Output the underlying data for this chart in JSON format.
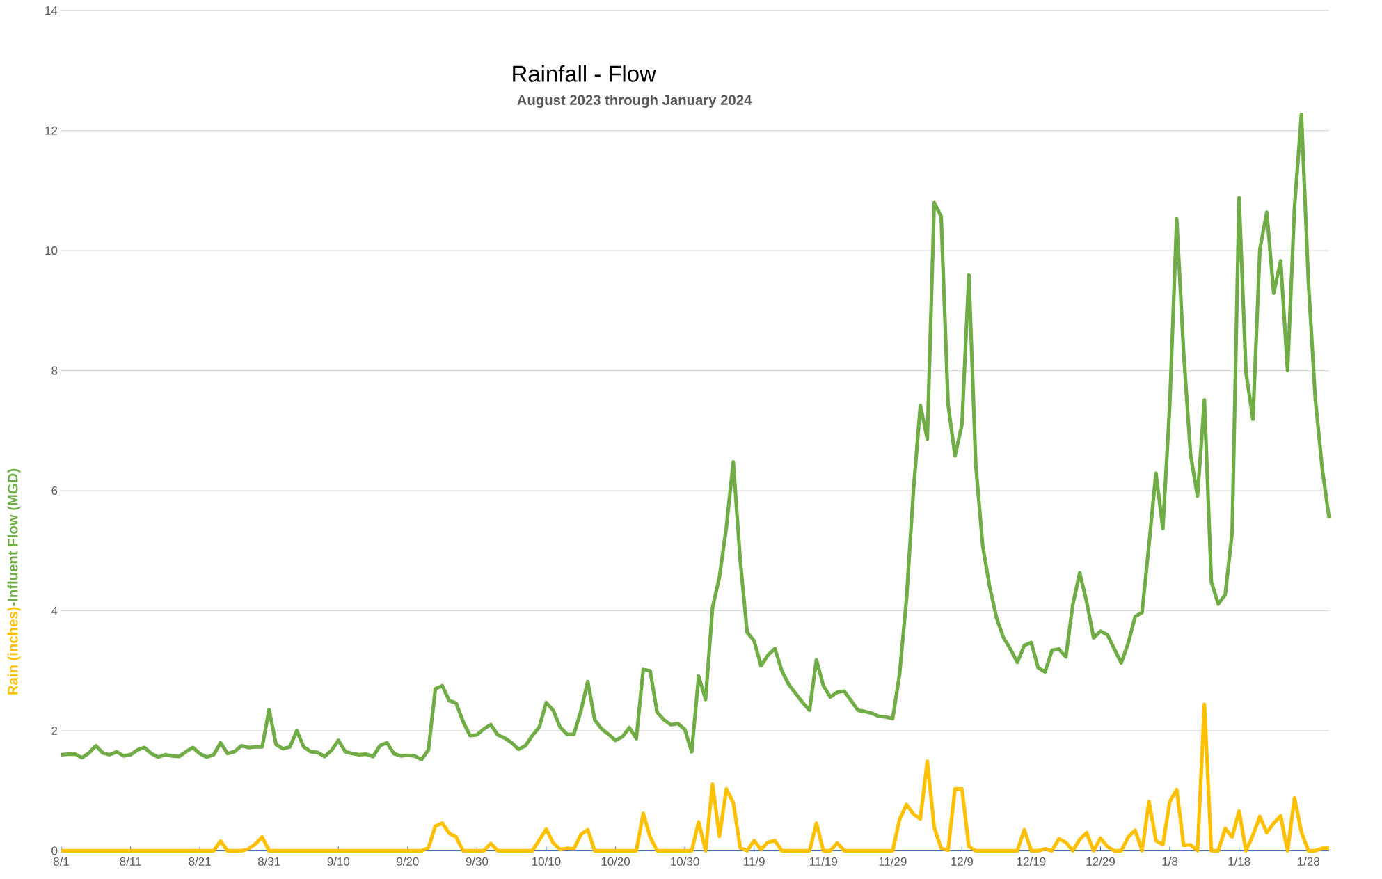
{
  "chart_data": {
    "type": "line",
    "title": "Rainfall - Flow",
    "subtitle": "August 2023 through January 2024",
    "x": [
      "2023-08-01",
      "2023-08-02",
      "2023-08-03",
      "2023-08-04",
      "2023-08-05",
      "2023-08-06",
      "2023-08-07",
      "2023-08-08",
      "2023-08-09",
      "2023-08-10",
      "2023-08-11",
      "2023-08-12",
      "2023-08-13",
      "2023-08-14",
      "2023-08-15",
      "2023-08-16",
      "2023-08-17",
      "2023-08-18",
      "2023-08-19",
      "2023-08-20",
      "2023-08-21",
      "2023-08-22",
      "2023-08-23",
      "2023-08-24",
      "2023-08-25",
      "2023-08-26",
      "2023-08-27",
      "2023-08-28",
      "2023-08-29",
      "2023-08-30",
      "2023-08-31",
      "2023-09-01",
      "2023-09-02",
      "2023-09-03",
      "2023-09-04",
      "2023-09-05",
      "2023-09-06",
      "2023-09-07",
      "2023-09-08",
      "2023-09-09",
      "2023-09-10",
      "2023-09-11",
      "2023-09-12",
      "2023-09-13",
      "2023-09-14",
      "2023-09-15",
      "2023-09-16",
      "2023-09-17",
      "2023-09-18",
      "2023-09-19",
      "2023-09-20",
      "2023-09-21",
      "2023-09-22",
      "2023-09-23",
      "2023-09-24",
      "2023-09-25",
      "2023-09-26",
      "2023-09-27",
      "2023-09-28",
      "2023-09-29",
      "2023-09-30",
      "2023-10-01",
      "2023-10-02",
      "2023-10-03",
      "2023-10-04",
      "2023-10-05",
      "2023-10-06",
      "2023-10-07",
      "2023-10-08",
      "2023-10-09",
      "2023-10-10",
      "2023-10-11",
      "2023-10-12",
      "2023-10-13",
      "2023-10-14",
      "2023-10-15",
      "2023-10-16",
      "2023-10-17",
      "2023-10-18",
      "2023-10-19",
      "2023-10-20",
      "2023-10-21",
      "2023-10-22",
      "2023-10-23",
      "2023-10-24",
      "2023-10-25",
      "2023-10-26",
      "2023-10-27",
      "2023-10-28",
      "2023-10-29",
      "2023-10-30",
      "2023-10-31",
      "2023-11-01",
      "2023-11-02",
      "2023-11-03",
      "2023-11-04",
      "2023-11-05",
      "2023-11-06",
      "2023-11-07",
      "2023-11-08",
      "2023-11-09",
      "2023-11-10",
      "2023-11-11",
      "2023-11-12",
      "2023-11-13",
      "2023-11-14",
      "2023-11-15",
      "2023-11-16",
      "2023-11-17",
      "2023-11-18",
      "2023-11-19",
      "2023-11-20",
      "2023-11-21",
      "2023-11-22",
      "2023-11-23",
      "2023-11-24",
      "2023-11-25",
      "2023-11-26",
      "2023-11-27",
      "2023-11-28",
      "2023-11-29",
      "2023-11-30",
      "2023-12-01",
      "2023-12-02",
      "2023-12-03",
      "2023-12-04",
      "2023-12-05",
      "2023-12-06",
      "2023-12-07",
      "2023-12-08",
      "2023-12-09",
      "2023-12-10",
      "2023-12-11",
      "2023-12-12",
      "2023-12-13",
      "2023-12-14",
      "2023-12-15",
      "2023-12-16",
      "2023-12-17",
      "2023-12-18",
      "2023-12-19",
      "2023-12-20",
      "2023-12-21",
      "2023-12-22",
      "2023-12-23",
      "2023-12-24",
      "2023-12-25",
      "2023-12-26",
      "2023-12-27",
      "2023-12-28",
      "2023-12-29",
      "2023-12-30",
      "2023-12-31",
      "2024-01-01",
      "2024-01-02",
      "2024-01-03",
      "2024-01-04",
      "2024-01-05",
      "2024-01-06",
      "2024-01-07",
      "2024-01-08",
      "2024-01-09",
      "2024-01-10",
      "2024-01-11",
      "2024-01-12",
      "2024-01-13",
      "2024-01-14",
      "2024-01-15",
      "2024-01-16",
      "2024-01-17",
      "2024-01-18",
      "2024-01-19",
      "2024-01-20",
      "2024-01-21",
      "2024-01-22",
      "2024-01-23",
      "2024-01-24",
      "2024-01-25",
      "2024-01-26",
      "2024-01-27",
      "2024-01-28",
      "2024-01-29",
      "2024-01-30",
      "2024-01-31"
    ],
    "xlim": [
      "2023-08-01",
      "2024-01-31"
    ],
    "xticks": [
      {
        "value": "2023-08-01",
        "label": "8/1"
      },
      {
        "value": "2023-08-11",
        "label": "8/11"
      },
      {
        "value": "2023-08-21",
        "label": "8/21"
      },
      {
        "value": "2023-08-31",
        "label": "8/31"
      },
      {
        "value": "2023-09-10",
        "label": "9/10"
      },
      {
        "value": "2023-09-20",
        "label": "9/20"
      },
      {
        "value": "2023-09-30",
        "label": "9/30"
      },
      {
        "value": "2023-10-10",
        "label": "10/10"
      },
      {
        "value": "2023-10-20",
        "label": "10/20"
      },
      {
        "value": "2023-10-30",
        "label": "10/30"
      },
      {
        "value": "2023-11-09",
        "label": "11/9"
      },
      {
        "value": "2023-11-19",
        "label": "11/19"
      },
      {
        "value": "2023-11-29",
        "label": "11/29"
      },
      {
        "value": "2023-12-09",
        "label": "12/9"
      },
      {
        "value": "2023-12-19",
        "label": "12/19"
      },
      {
        "value": "2023-12-29",
        "label": "12/29"
      },
      {
        "value": "2024-01-08",
        "label": "1/8"
      },
      {
        "value": "2024-01-18",
        "label": "1/18"
      },
      {
        "value": "2024-01-28",
        "label": "1/28"
      }
    ],
    "ylim": [
      0,
      14
    ],
    "yticks": [
      0,
      2,
      4,
      6,
      8,
      10,
      12,
      14
    ],
    "grid": "y",
    "line_style": "solid",
    "series": [
      {
        "name": "Rain (inches)",
        "color": "#ffc000",
        "values": [
          0,
          0,
          0,
          0,
          0,
          0,
          0,
          0,
          0,
          0,
          0,
          0,
          0,
          0,
          0,
          0,
          0,
          0,
          0,
          0,
          0,
          0,
          0,
          0.16,
          0,
          0,
          0,
          0.03,
          0.11,
          0.23,
          0,
          0,
          0,
          0,
          0,
          0,
          0,
          0,
          0,
          0,
          0,
          0,
          0,
          0,
          0,
          0,
          0,
          0,
          0,
          0,
          0,
          0,
          0,
          0.05,
          0.41,
          0.46,
          0.29,
          0.23,
          0,
          0,
          0,
          0,
          0.12,
          0,
          0,
          0,
          0,
          0,
          0,
          0.18,
          0.36,
          0.13,
          0.02,
          0.04,
          0.03,
          0.27,
          0.35,
          0,
          0,
          0,
          0,
          0,
          0,
          0,
          0.62,
          0.23,
          0,
          0,
          0,
          0,
          0,
          0,
          0.48,
          0,
          1.11,
          0.24,
          1.03,
          0.8,
          0.05,
          0,
          0.17,
          0.02,
          0.14,
          0.17,
          0,
          0,
          0,
          0,
          0,
          0.46,
          0,
          0,
          0.13,
          0,
          0,
          0,
          0,
          0,
          0,
          0,
          0,
          0.52,
          0.77,
          0.61,
          0.53,
          1.49,
          0.39,
          0.04,
          0.01,
          1.03,
          1.03,
          0.07,
          0,
          0,
          0,
          0,
          0,
          0,
          0,
          0.35,
          0,
          0,
          0.03,
          0,
          0.2,
          0.14,
          0,
          0.19,
          0.3,
          0,
          0.21,
          0.07,
          0,
          0,
          0.23,
          0.34,
          0,
          0.82,
          0.17,
          0.1,
          0.82,
          1.02,
          0.09,
          0.1,
          0,
          2.44,
          0,
          0,
          0.37,
          0.23,
          0.66,
          0,
          0.26,
          0.57,
          0.3,
          0.46,
          0.58,
          0,
          0.88,
          0.31,
          0,
          0,
          0.04,
          0.04
        ]
      },
      {
        "name": "-Influent Flow (MGD)",
        "color": "#70ad47",
        "values": [
          1.6,
          1.61,
          1.61,
          1.55,
          1.63,
          1.75,
          1.63,
          1.6,
          1.65,
          1.58,
          1.6,
          1.68,
          1.72,
          1.62,
          1.56,
          1.6,
          1.58,
          1.57,
          1.65,
          1.72,
          1.62,
          1.56,
          1.6,
          1.8,
          1.62,
          1.65,
          1.75,
          1.72,
          1.73,
          1.73,
          2.35,
          1.77,
          1.7,
          1.73,
          2.0,
          1.73,
          1.65,
          1.64,
          1.57,
          1.67,
          1.84,
          1.65,
          1.62,
          1.6,
          1.61,
          1.57,
          1.75,
          1.8,
          1.62,
          1.58,
          1.59,
          1.58,
          1.52,
          1.68,
          2.7,
          2.75,
          2.5,
          2.46,
          2.15,
          1.92,
          1.93,
          2.03,
          2.1,
          1.93,
          1.88,
          1.8,
          1.69,
          1.75,
          1.92,
          2.06,
          2.47,
          2.34,
          2.06,
          1.94,
          1.94,
          2.33,
          2.82,
          2.18,
          2.03,
          1.94,
          1.84,
          1.9,
          2.05,
          1.87,
          3.02,
          3.0,
          2.31,
          2.18,
          2.1,
          2.12,
          2.02,
          1.65,
          2.91,
          2.52,
          4.05,
          4.56,
          5.39,
          6.48,
          4.84,
          3.64,
          3.5,
          3.08,
          3.26,
          3.37,
          3.0,
          2.77,
          2.62,
          2.47,
          2.34,
          3.18,
          2.75,
          2.56,
          2.64,
          2.66,
          2.5,
          2.34,
          2.32,
          2.29,
          2.24,
          2.23,
          2.2,
          2.94,
          4.2,
          6.0,
          7.42,
          6.86,
          10.8,
          10.57,
          7.44,
          6.58,
          7.1,
          9.6,
          6.43,
          5.08,
          4.4,
          3.88,
          3.55,
          3.36,
          3.14,
          3.42,
          3.47,
          3.05,
          2.98,
          3.34,
          3.36,
          3.23,
          4.1,
          4.63,
          4.15,
          3.55,
          3.66,
          3.6,
          3.36,
          3.13,
          3.46,
          3.9,
          3.97,
          5.1,
          6.29,
          5.37,
          7.44,
          10.53,
          8.3,
          6.6,
          5.91,
          7.51,
          4.48,
          4.11,
          4.27,
          5.3,
          10.88,
          7.97,
          7.19,
          10.02,
          10.64,
          9.29,
          9.83,
          8.0,
          10.72,
          12.27,
          9.5,
          7.53,
          6.37,
          5.54
        ]
      }
    ]
  }
}
